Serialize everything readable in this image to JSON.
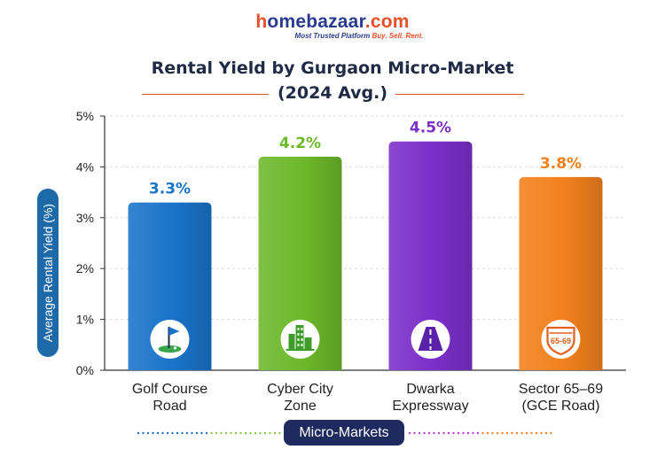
{
  "logo": {
    "brand_h": "h",
    "brand_rest": "omebazaar",
    "brand_com": ".com",
    "tagline_a": "Most Trusted Platform ",
    "tagline_b": "Buy. Sell. Rent."
  },
  "chart_data": {
    "type": "bar",
    "title": "Rental Yield by Gurgaon Micro-Market",
    "subtitle": "(2024 Avg.)",
    "ylabel": "Average Rental Yield (%)",
    "xlabel": "Micro-Markets",
    "ylim": [
      0,
      5
    ],
    "yticks": [
      "0%",
      "1%",
      "2%",
      "3%",
      "4%",
      "5%"
    ],
    "grid": true,
    "categories": [
      [
        "Golf Course",
        "Road"
      ],
      [
        "Cyber City",
        "Zone"
      ],
      [
        "Dwarka",
        "Expressway"
      ],
      [
        "Sector 65–69",
        "(GCE Road)"
      ]
    ],
    "values": [
      3.3,
      4.2,
      4.5,
      3.8
    ],
    "data_labels": [
      "3.3%",
      "4.2%",
      "4.5%",
      "3.8%"
    ],
    "colors": [
      "#1a73c9",
      "#6cb82a",
      "#7a2fc9",
      "#f2801c"
    ],
    "icons": [
      "golf-flag-icon",
      "city-buildings-icon",
      "expressway-road-icon",
      "highway-shield-icon"
    ],
    "icon_text": [
      "",
      "",
      "",
      "65-69"
    ]
  }
}
